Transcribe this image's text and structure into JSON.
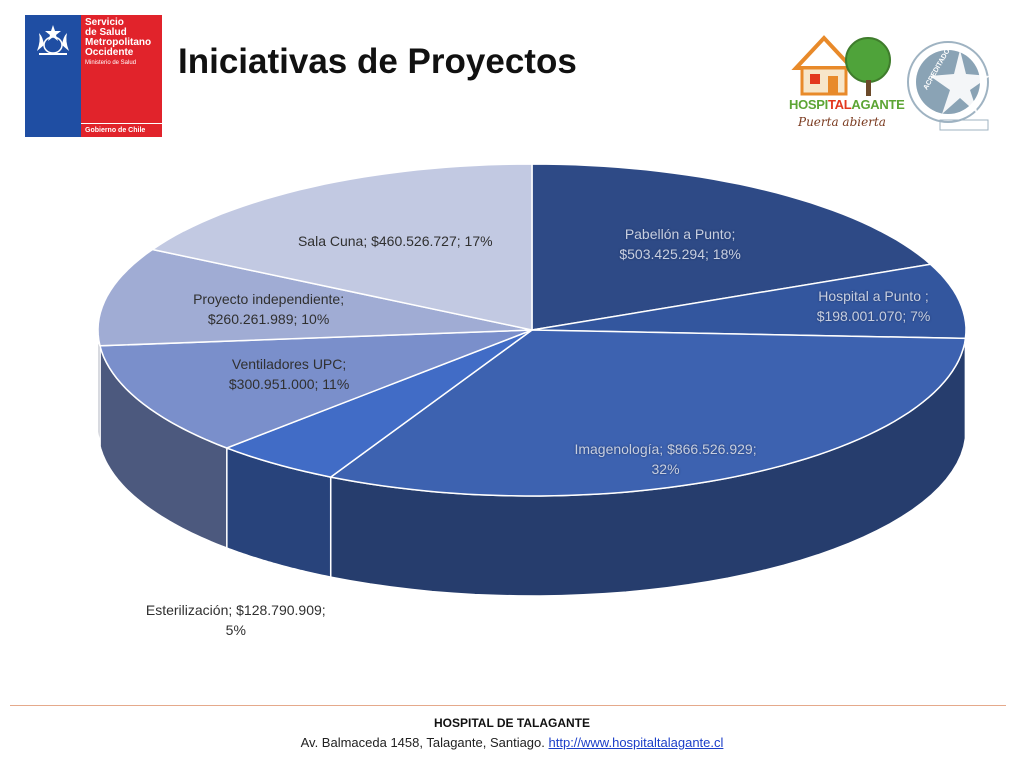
{
  "header": {
    "title": "Iniciativas de Proyectos",
    "gov_logo": {
      "service_lines": [
        "Servicio",
        "de Salud",
        "Metropolitano",
        "Occidente"
      ],
      "ministry": "Ministerio de Salud",
      "government": "Gobierno de Chile"
    },
    "hospital_logo": {
      "text_a": "HOSPI",
      "text_b": "TAL",
      "text_c": "AGANTE",
      "tagline": "Puerta abierta"
    },
    "accreditation_seal": {
      "label": "ACREDITADO"
    }
  },
  "chart_data": {
    "type": "pie",
    "style": "3d",
    "title": "",
    "slices": [
      {
        "category": "Pabellón a Punto",
        "value": 503425294,
        "percent": 18,
        "color": "#2e4a86",
        "label_lines": [
          "Pabellón a Punto;",
          "$503.425.294; 18%"
        ]
      },
      {
        "category": "Hospital a Punto",
        "value": 198001070,
        "percent": 7,
        "color": "#33569e",
        "label_lines": [
          "Hospital a Punto ;",
          "$198.001.070; 7%"
        ]
      },
      {
        "category": "Imagenología",
        "value": 866526929,
        "percent": 32,
        "color": "#3d62b0",
        "label_lines": [
          "Imagenología; $866.526.929;",
          "32%"
        ]
      },
      {
        "category": "Esterilización",
        "value": 128790909,
        "percent": 5,
        "color": "#416cc6",
        "label_lines": [
          "Esterilización; $128.790.909;",
          "5%"
        ]
      },
      {
        "category": "Ventiladores UPC",
        "value": 300951000,
        "percent": 11,
        "color": "#7a8fcb",
        "label_lines": [
          "Ventiladores UPC;",
          "$300.951.000; 11%"
        ]
      },
      {
        "category": "Proyecto independiente",
        "value": 260261989,
        "percent": 10,
        "color": "#a0acd4",
        "label_lines": [
          "Proyecto independiente;",
          "$260.261.989; 10%"
        ]
      },
      {
        "category": "Sala Cuna",
        "value": 460526727,
        "percent": 17,
        "color": "#c2c9e2",
        "label_lines": [
          "Sala Cuna; $460.526.727; 17%"
        ]
      }
    ]
  },
  "footer": {
    "name": "HOSPITAL DE TALAGANTE",
    "address": "Av. Balmaceda 1458, Talagante, Santiago.",
    "link": "http://www.hospitaltalagante.cl"
  },
  "icons": [
    "chile-coat-of-arms-icon",
    "house-tree-icon",
    "star-seal-icon"
  ]
}
